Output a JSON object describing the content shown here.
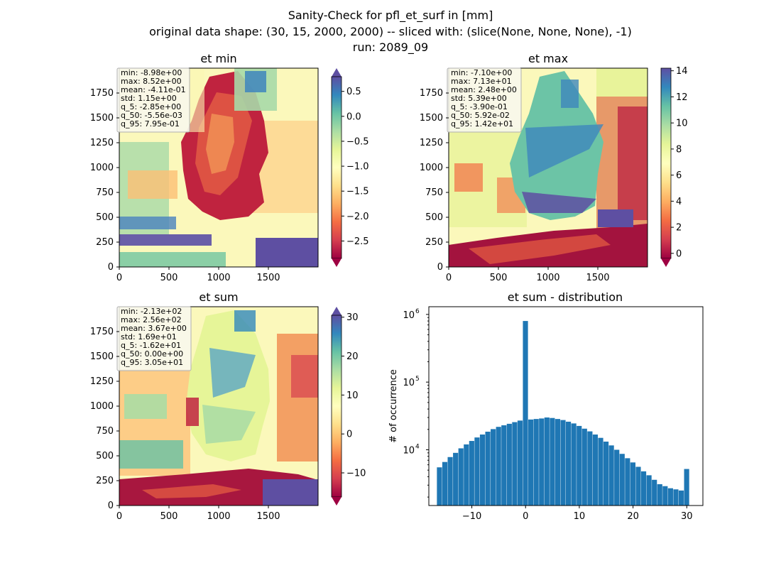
{
  "figure": {
    "title_lines": [
      "Sanity-Check for pfl_et_surf in [mm]",
      "original data shape: (30, 15, 2000, 2000) -- sliced with: (slice(None, None, None), -1)",
      "run: 2089_09"
    ]
  },
  "panels": {
    "et_min": {
      "title": "et min",
      "stats": [
        "min: -8.98e+00",
        "max: 8.52e+00",
        "mean: -4.11e-01",
        "std: 1.15e+00",
        "q_5: -2.85e+00",
        "q_50: -5.56e-03",
        "q_95: 7.95e-01"
      ],
      "xticks": [
        "0",
        "500",
        "1000",
        "1500"
      ],
      "yticks": [
        "0",
        "250",
        "500",
        "750",
        "1000",
        "1250",
        "1500",
        "1750"
      ],
      "colorbar": {
        "ticks": [
          "0.5",
          "0.0",
          "−0.5",
          "−1.0",
          "−1.5",
          "−2.0",
          "−2.5"
        ],
        "values": [
          0.5,
          0.0,
          -0.5,
          -1.0,
          -1.5,
          -2.0,
          -2.5
        ],
        "vmin": -2.85,
        "vmax": 0.795
      }
    },
    "et_max": {
      "title": "et max",
      "stats": [
        "min: -7.10e+00",
        "max: 7.13e+01",
        "mean: 2.48e+00",
        "std: 5.39e+00",
        "q_5: -3.90e-01",
        "q_50: 5.92e-02",
        "q_95: 1.42e+01"
      ],
      "xticks": [
        "0",
        "500",
        "1000",
        "1500"
      ],
      "yticks": [
        "0",
        "250",
        "500",
        "750",
        "1000",
        "1250",
        "1500",
        "1750"
      ],
      "colorbar": {
        "ticks": [
          "14",
          "12",
          "10",
          "8",
          "6",
          "4",
          "2",
          "0"
        ],
        "values": [
          14,
          12,
          10,
          8,
          6,
          4,
          2,
          0
        ],
        "vmin": -0.39,
        "vmax": 14.2
      }
    },
    "et_sum": {
      "title": "et sum",
      "stats": [
        "min: -2.13e+02",
        "max: 2.56e+02",
        "mean: 3.67e+00",
        "std: 1.69e+01",
        "q_5: -1.62e+01",
        "q_50: 0.00e+00",
        "q_95: 3.05e+01"
      ],
      "xticks": [
        "0",
        "500",
        "1000",
        "1500"
      ],
      "yticks": [
        "0",
        "250",
        "500",
        "750",
        "1000",
        "1250",
        "1500",
        "1750"
      ],
      "colorbar": {
        "ticks": [
          "30",
          "20",
          "10",
          "0",
          "−10"
        ],
        "values": [
          30,
          20,
          10,
          0,
          -10
        ],
        "vmin": -16.2,
        "vmax": 30.5
      }
    },
    "distribution": {
      "title": "et sum - distribution",
      "ylabel": "# of occurrence",
      "xticks": [
        "−10",
        "0",
        "10",
        "20",
        "30"
      ],
      "yticks": [
        "10",
        "10",
        "10"
      ],
      "yexp": [
        "4",
        "5",
        "6"
      ]
    }
  },
  "chart_data": [
    {
      "type": "heatmap",
      "title": "et min",
      "x_range": [
        0,
        2000
      ],
      "y_range": [
        0,
        2000
      ],
      "colormap": "Spectral",
      "color_range": [
        -2.85,
        0.795
      ]
    },
    {
      "type": "heatmap",
      "title": "et max",
      "x_range": [
        0,
        2000
      ],
      "y_range": [
        0,
        2000
      ],
      "colormap": "Spectral",
      "color_range": [
        -0.39,
        14.2
      ]
    },
    {
      "type": "heatmap",
      "title": "et sum",
      "x_range": [
        0,
        2000
      ],
      "y_range": [
        0,
        2000
      ],
      "colormap": "Spectral",
      "color_range": [
        -16.2,
        30.5
      ]
    },
    {
      "type": "bar",
      "title": "et sum - distribution",
      "ylabel": "# of occurrence",
      "yscale": "log",
      "xlim": [
        -18,
        33
      ],
      "ylim": [
        1500,
        1300000
      ],
      "color": "#1f77b4",
      "x": [
        -16,
        -15,
        -14,
        -13,
        -12,
        -11,
        -10,
        -9,
        -8,
        -7,
        -6,
        -5,
        -4,
        -3,
        -2,
        -1,
        0,
        1,
        2,
        3,
        4,
        5,
        6,
        7,
        8,
        9,
        10,
        11,
        12,
        13,
        14,
        15,
        16,
        17,
        18,
        19,
        20,
        21,
        22,
        23,
        24,
        25,
        26,
        27,
        28,
        29,
        30
      ],
      "values": [
        5500,
        6600,
        7800,
        9000,
        10500,
        12000,
        13500,
        15200,
        16800,
        18500,
        20200,
        21800,
        23000,
        24200,
        25600,
        27000,
        800000,
        28000,
        28500,
        29000,
        30000,
        29500,
        28500,
        27500,
        26000,
        24500,
        22500,
        20500,
        18700,
        16800,
        15000,
        13200,
        11600,
        10000,
        8700,
        7500,
        6500,
        5600,
        4800,
        4200,
        3600,
        3100,
        2900,
        2700,
        2600,
        2500,
        5200
      ]
    }
  ]
}
